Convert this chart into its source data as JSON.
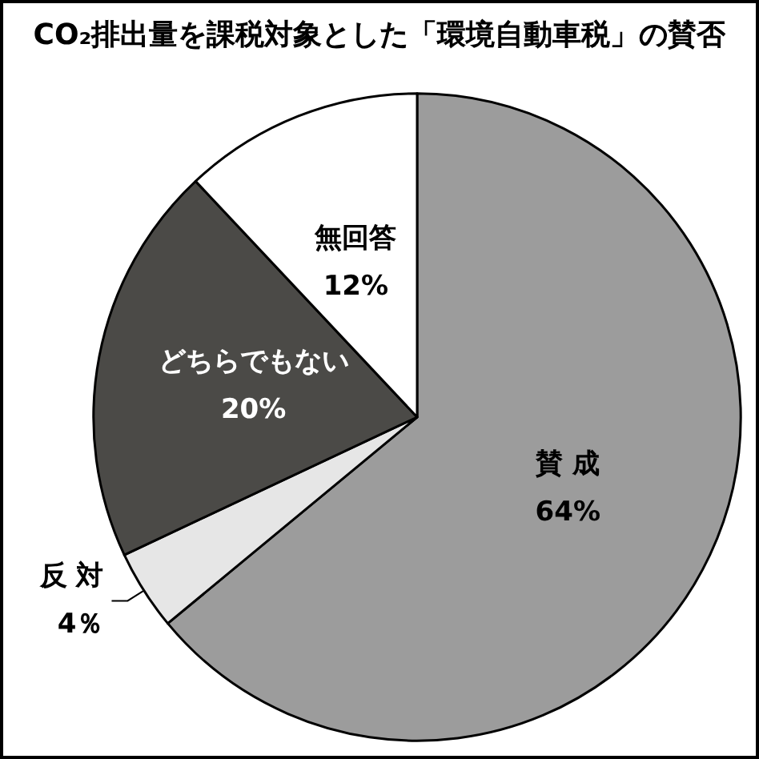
{
  "chart_data": {
    "type": "pie",
    "title": "CO₂排出量を課税対象とした「環境自動車税」の賛否",
    "categories": [
      "賛 成",
      "反 対",
      "どちらでもない",
      "無回答"
    ],
    "values": [
      64,
      4,
      20,
      12
    ],
    "value_labels": [
      "64%",
      "4％",
      "20%",
      "12%"
    ],
    "colors": [
      "#9c9c9c",
      "#e6e6e6",
      "#4b4a47",
      "#ffffff"
    ],
    "legend": false
  }
}
